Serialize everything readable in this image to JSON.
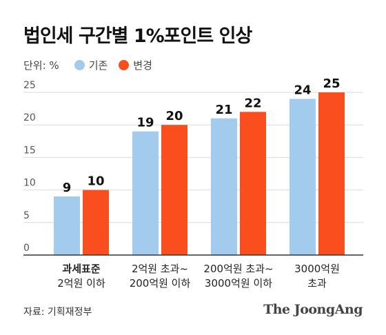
{
  "title": "법인세 구간별 1%포인트 인상",
  "unit_label": "단위: %",
  "source": "자료: 기획재정부",
  "logo": "The JoongAng",
  "colors": {
    "before": "#A3CBEE",
    "after": "#FB4E1E",
    "grid": "#D9D9D9",
    "axis": "#333333"
  },
  "chart_data": {
    "type": "bar",
    "title": "법인세 구간별 1%포인트 인상",
    "xlabel": "",
    "ylabel": "단위: %",
    "ylim": [
      0,
      25
    ],
    "yticks": [
      0,
      5,
      10,
      15,
      20,
      25
    ],
    "grid": true,
    "legend": "top-left",
    "categories": [
      {
        "lines": [
          "과세표준",
          "2억원 이하"
        ],
        "bold_first": true
      },
      {
        "lines": [
          "2억원 초과~",
          "200억원 이하"
        ],
        "bold_first": false
      },
      {
        "lines": [
          "200억원 초과~",
          "3000억원 이하"
        ],
        "bold_first": false
      },
      {
        "lines": [
          "3000억원",
          "초과"
        ],
        "bold_first": false
      }
    ],
    "series": [
      {
        "name": "기존",
        "color": "#A3CBEE",
        "values": [
          9,
          19,
          21,
          24
        ]
      },
      {
        "name": "변경",
        "color": "#FB4E1E",
        "values": [
          10,
          20,
          22,
          25
        ]
      }
    ]
  }
}
